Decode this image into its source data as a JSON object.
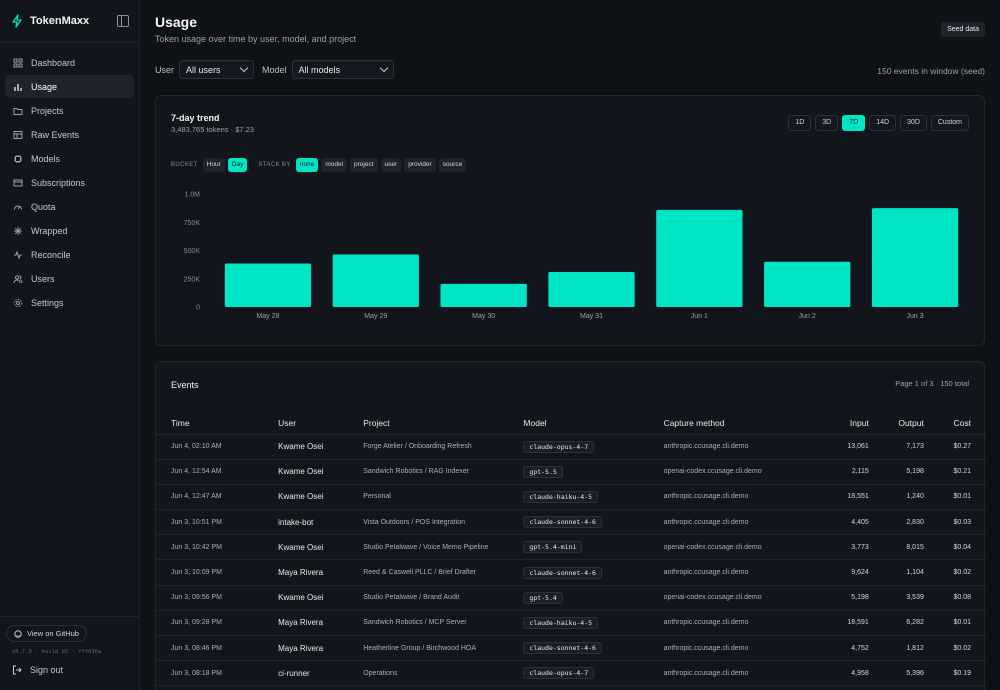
{
  "app": {
    "name": "TokenMaxx"
  },
  "sidebar": {
    "items": [
      {
        "label": "Dashboard",
        "icon": "grid-icon"
      },
      {
        "label": "Usage",
        "icon": "bar-chart-icon",
        "active": true
      },
      {
        "label": "Projects",
        "icon": "folder-icon"
      },
      {
        "label": "Raw Events",
        "icon": "table-icon"
      },
      {
        "label": "Models",
        "icon": "chip-icon"
      },
      {
        "label": "Subscriptions",
        "icon": "card-icon"
      },
      {
        "label": "Quota",
        "icon": "gauge-icon"
      },
      {
        "label": "Wrapped",
        "icon": "sparkle-icon"
      },
      {
        "label": "Reconcile",
        "icon": "pulse-icon"
      },
      {
        "label": "Users",
        "icon": "users-icon"
      },
      {
        "label": "Settings",
        "icon": "gear-icon"
      }
    ],
    "github_label": "View on GitHub",
    "build": "v0.7.0 · build 02 · fffd16a",
    "signout_label": "Sign out"
  },
  "header": {
    "title": "Usage",
    "subtitle": "Token usage over time by user, model, and project",
    "seed_label": "Seed data"
  },
  "filters": {
    "user_label": "User",
    "user_value": "All users",
    "model_label": "Model",
    "model_value": "All models",
    "events_in_window": "150 events in window (seed)"
  },
  "trend": {
    "title": "7-day trend",
    "summary": "3,483,765 tokens · $7.23",
    "ranges": [
      {
        "label": "1D",
        "active": false
      },
      {
        "label": "3D",
        "active": false
      },
      {
        "label": "7D",
        "active": true
      },
      {
        "label": "14D",
        "active": false
      },
      {
        "label": "30D",
        "active": false
      },
      {
        "label": "Custom",
        "active": false
      }
    ],
    "bucket_label": "BUCKET",
    "buckets": [
      {
        "label": "Hour",
        "active": false
      },
      {
        "label": "Day",
        "active": true
      }
    ],
    "stack_label": "STACK BY",
    "stacks": [
      {
        "label": "none",
        "active": true
      },
      {
        "label": "model",
        "active": false
      },
      {
        "label": "project",
        "active": false
      },
      {
        "label": "user",
        "active": false
      },
      {
        "label": "provider",
        "active": false
      },
      {
        "label": "source",
        "active": false
      }
    ]
  },
  "chart_data": {
    "type": "bar",
    "categories": [
      "May 28",
      "May 29",
      "May 30",
      "May 31",
      "Jun 1",
      "Jun 2",
      "Jun 3"
    ],
    "values": [
      385000,
      465000,
      205000,
      310000,
      860000,
      400000,
      875000
    ],
    "ylim": [
      0,
      1000000
    ],
    "yticks": [
      0,
      250000,
      500000,
      750000,
      1000000
    ],
    "ytick_labels": [
      "0",
      "250K",
      "500K",
      "750K",
      "1.0M"
    ],
    "bar_color": "#00e5c6",
    "grid": false
  },
  "events": {
    "title": "Events",
    "pagination": "Page 1 of 3 · 150 total",
    "columns": [
      "Time",
      "User",
      "Project",
      "Model",
      "Capture method",
      "Input",
      "Output",
      "Cost"
    ],
    "rows": [
      [
        "Jun 4, 02:10 AM",
        "Kwame Osei",
        "Forge Atelier / Onboarding Refresh",
        "claude-opus-4-7",
        "anthropic.ccusage.cli.demo",
        "13,061",
        "7,173",
        "$0.27"
      ],
      [
        "Jun 4, 12:54 AM",
        "Kwame Osei",
        "Sandwich Robotics / RAG Indexer",
        "gpt-5.5",
        "openai-codex.ccusage.cli.demo",
        "2,115",
        "5,198",
        "$0.21"
      ],
      [
        "Jun 4, 12:47 AM",
        "Kwame Osei",
        "Personal",
        "claude-haiku-4-5",
        "anthropic.ccusage.cli.demo",
        "18,551",
        "1,240",
        "$0.01"
      ],
      [
        "Jun 3, 10:51 PM",
        "intake-bot",
        "Vista Outdoors / POS Integration",
        "claude-sonnet-4-6",
        "anthropic.ccusage.cli.demo",
        "4,405",
        "2,830",
        "$0.03"
      ],
      [
        "Jun 3, 10:42 PM",
        "Kwame Osei",
        "Studio Petalwave / Voice Memo Pipeline",
        "gpt-5.4-mini",
        "openai-codex.ccusage.cli.demo",
        "3,773",
        "8,015",
        "$0.04"
      ],
      [
        "Jun 3, 10:09 PM",
        "Maya Rivera",
        "Reed & Caswell PLLC / Brief Drafter",
        "claude-sonnet-4-6",
        "anthropic.ccusage.cli.demo",
        "9,624",
        "1,104",
        "$0.02"
      ],
      [
        "Jun 3, 09:56 PM",
        "Kwame Osei",
        "Studio Petalwave / Brand Audit",
        "gpt-5.4",
        "openai-codex.ccusage.cli.demo",
        "5,198",
        "3,539",
        "$0.08"
      ],
      [
        "Jun 3, 09:28 PM",
        "Maya Rivera",
        "Sandwich Robotics / MCP Server",
        "claude-haiku-4-5",
        "anthropic.ccusage.cli.demo",
        "18,591",
        "6,282",
        "$0.01"
      ],
      [
        "Jun 3, 08:46 PM",
        "Maya Rivera",
        "Heatherline Group / Birchwood HOA",
        "claude-sonnet-4-6",
        "anthropic.ccusage.cli.demo",
        "4,752",
        "1,812",
        "$0.02"
      ],
      [
        "Jun 3, 08:18 PM",
        "ci-runner",
        "Operations",
        "claude-opus-4-7",
        "anthropic.ccusage.cli.demo",
        "4,958",
        "5,396",
        "$0.19"
      ]
    ]
  },
  "colors": {
    "accent": "#00e5c6",
    "background": "#0e1116",
    "panel": "#12151b"
  }
}
